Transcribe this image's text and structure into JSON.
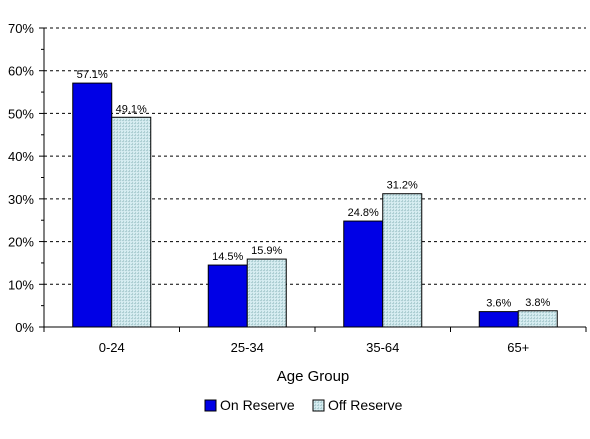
{
  "chart_data": {
    "type": "bar",
    "categories": [
      "0-24",
      "25-34",
      "35-64",
      "65+"
    ],
    "series": [
      {
        "name": "On Reserve",
        "values": [
          57.1,
          14.5,
          24.8,
          3.6
        ],
        "labels": [
          "57.1%",
          "14.5%",
          "24.8%",
          "3.6%"
        ],
        "color": "#0000e6"
      },
      {
        "name": "Off Reserve",
        "values": [
          49.1,
          15.9,
          31.2,
          3.8
        ],
        "labels": [
          "49.1%",
          "15.9%",
          "31.2%",
          "3.8%"
        ],
        "color": "#cfe6ea"
      }
    ],
    "xlabel": "Age Group",
    "ylabel": "",
    "ylim": [
      0,
      70
    ],
    "yticks": [
      0,
      10,
      20,
      30,
      40,
      50,
      60,
      70
    ],
    "ytick_labels": [
      "0%",
      "10%",
      "20%",
      "30%",
      "40%",
      "50%",
      "60%",
      "70%"
    ],
    "grid": true,
    "legend_position": "bottom"
  }
}
